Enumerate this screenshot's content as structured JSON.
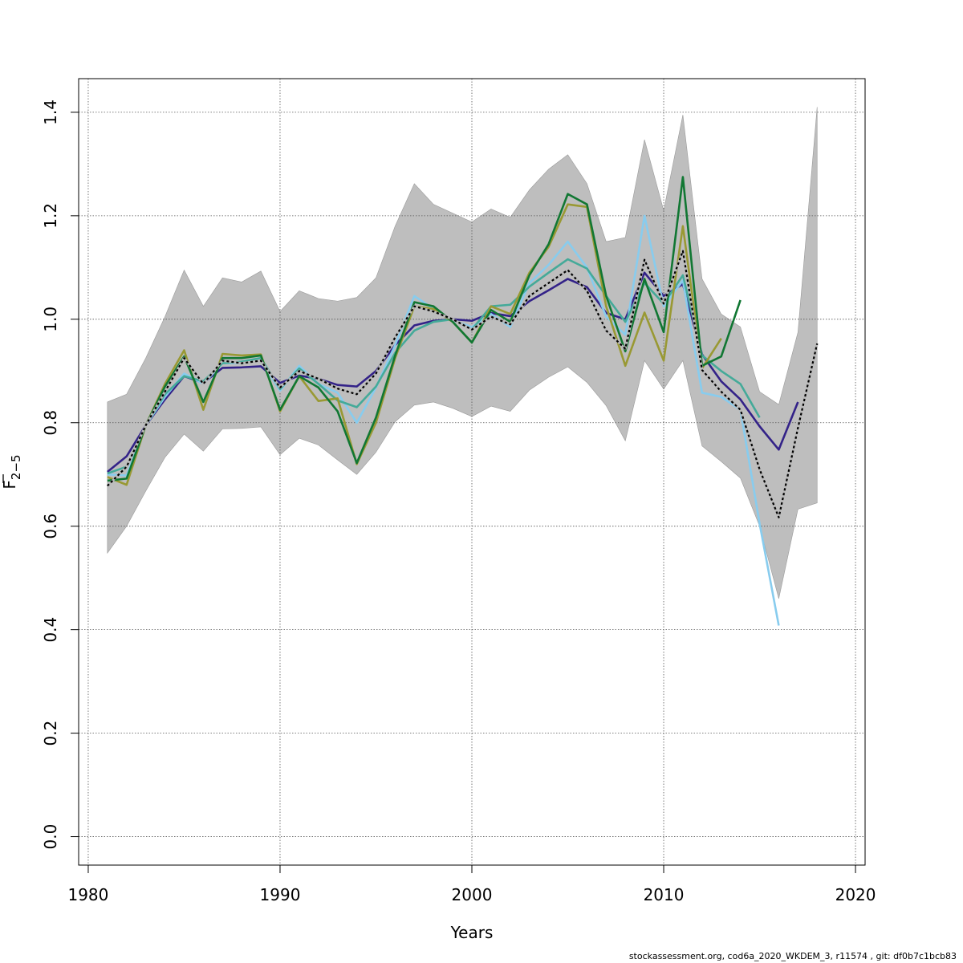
{
  "chart_data": {
    "type": "line",
    "title": "",
    "xlabel": "Years",
    "ylabel_main": "F",
    "ylabel_sub": "2−5",
    "xlim": [
      1979.5,
      2020.5
    ],
    "ylim": [
      -0.055,
      1.465
    ],
    "x_ticks": [
      1980,
      1990,
      2000,
      2010,
      2020
    ],
    "y_ticks": [
      0.0,
      0.2,
      0.4,
      0.6,
      0.8,
      1.0,
      1.2,
      1.4
    ],
    "x_tick_labels": [
      "1980",
      "1990",
      "2000",
      "2010",
      "2020"
    ],
    "y_tick_labels": [
      "0.0",
      "0.2",
      "0.4",
      "0.6",
      "0.8",
      "1.0",
      "1.2",
      "1.4"
    ],
    "grid": true,
    "band_color": "#bebebe",
    "band": {
      "x": [
        1981,
        1982,
        1983,
        1984,
        1985,
        1986,
        1987,
        1988,
        1989,
        1990,
        1991,
        1992,
        1993,
        1994,
        1995,
        1996,
        1997,
        1998,
        1999,
        2000,
        2001,
        2002,
        2003,
        2004,
        2005,
        2006,
        2007,
        2008,
        2009,
        2010,
        2011,
        2012,
        2013,
        2014,
        2015,
        2016,
        2017,
        2018
      ],
      "upper": [
        0.84,
        0.855,
        0.925,
        1.005,
        1.095,
        1.025,
        1.08,
        1.072,
        1.093,
        1.015,
        1.055,
        1.04,
        1.035,
        1.042,
        1.08,
        1.18,
        1.262,
        1.222,
        1.205,
        1.188,
        1.213,
        1.197,
        1.25,
        1.29,
        1.318,
        1.262,
        1.15,
        1.158,
        1.347,
        1.21,
        1.395,
        1.078,
        1.01,
        0.985,
        0.86,
        0.835,
        0.975,
        1.41
      ],
      "lower": [
        0.548,
        0.6,
        0.668,
        0.733,
        0.778,
        0.745,
        0.788,
        0.789,
        0.792,
        0.738,
        0.77,
        0.757,
        0.728,
        0.7,
        0.743,
        0.802,
        0.834,
        0.84,
        0.828,
        0.812,
        0.832,
        0.822,
        0.863,
        0.888,
        0.908,
        0.878,
        0.833,
        0.765,
        0.92,
        0.865,
        0.92,
        0.755,
        0.725,
        0.693,
        0.6,
        0.46,
        0.633,
        0.645
      ]
    },
    "series": [
      {
        "color": "#332288",
        "dashed": false,
        "x": [
          1981,
          1982,
          1983,
          1984,
          1985,
          1986,
          1987,
          1988,
          1989,
          1990,
          1991,
          1992,
          1993,
          1994,
          1995,
          1996,
          1997,
          1998,
          1999,
          2000,
          2001,
          2002,
          2003,
          2004,
          2005,
          2006,
          2007,
          2008,
          2009,
          2010,
          2011,
          2012,
          2013,
          2014,
          2015,
          2016,
          2017
        ],
        "values": [
          0.705,
          0.735,
          0.795,
          0.845,
          0.89,
          0.877,
          0.906,
          0.907,
          0.909,
          0.877,
          0.891,
          0.885,
          0.873,
          0.87,
          0.9,
          0.95,
          0.988,
          0.997,
          1.0,
          0.997,
          1.012,
          1.006,
          1.035,
          1.056,
          1.078,
          1.062,
          1.012,
          1.0,
          1.09,
          1.045,
          1.068,
          0.932,
          0.88,
          0.845,
          0.793,
          0.748,
          0.84
        ]
      },
      {
        "color": "#88ccee",
        "dashed": false,
        "x": [
          1981,
          1982,
          1983,
          1984,
          1985,
          1986,
          1987,
          1988,
          1989,
          1990,
          1991,
          1992,
          1993,
          1994,
          1995,
          1996,
          1997,
          1998,
          1999,
          2000,
          2001,
          2002,
          2003,
          2004,
          2005,
          2006,
          2007,
          2008,
          2009,
          2010,
          2011,
          2012,
          2013,
          2014,
          2015,
          2016
        ],
        "values": [
          0.7,
          0.698,
          0.795,
          0.85,
          0.895,
          0.875,
          0.915,
          0.915,
          0.92,
          0.862,
          0.91,
          0.875,
          0.858,
          0.8,
          0.868,
          0.95,
          1.045,
          1.02,
          0.998,
          0.985,
          1.01,
          0.985,
          1.07,
          1.105,
          1.15,
          1.1,
          1.005,
          0.97,
          1.2,
          1.025,
          1.075,
          0.858,
          0.85,
          0.825,
          0.605,
          0.408
        ]
      },
      {
        "color": "#44aa99",
        "dashed": false,
        "x": [
          1981,
          1982,
          1983,
          1984,
          1985,
          1986,
          1987,
          1988,
          1989,
          1990,
          1991,
          1992,
          1993,
          1994,
          1995,
          1996,
          1997,
          1998,
          1999,
          2000,
          2001,
          2002,
          2003,
          2004,
          2005,
          2006,
          2007,
          2008,
          2009,
          2010,
          2011,
          2012,
          2013,
          2014,
          2015
        ],
        "values": [
          0.702,
          0.715,
          0.795,
          0.855,
          0.89,
          0.88,
          0.915,
          0.918,
          0.925,
          0.865,
          0.905,
          0.875,
          0.843,
          0.83,
          0.87,
          0.935,
          0.978,
          0.995,
          1.0,
          0.98,
          1.025,
          1.028,
          1.063,
          1.09,
          1.116,
          1.098,
          1.045,
          0.995,
          1.07,
          1.03,
          1.085,
          0.93,
          0.9,
          0.875,
          0.81
        ]
      },
      {
        "color": "#999933",
        "dashed": false,
        "x": [
          1981,
          1982,
          1983,
          1984,
          1985,
          1986,
          1987,
          1988,
          1989,
          1990,
          1991,
          1992,
          1993,
          1994,
          1995,
          1996,
          1997,
          1998,
          1999,
          2000,
          2001,
          2002,
          2003,
          2004,
          2005,
          2006,
          2007,
          2008,
          2009,
          2010,
          2011,
          2012,
          2013
        ],
        "values": [
          0.695,
          0.68,
          0.795,
          0.875,
          0.94,
          0.825,
          0.933,
          0.93,
          0.932,
          0.822,
          0.89,
          0.842,
          0.847,
          0.72,
          0.8,
          0.925,
          1.025,
          1.02,
          0.995,
          0.955,
          1.025,
          1.01,
          1.09,
          1.14,
          1.222,
          1.217,
          1.025,
          0.91,
          1.013,
          0.92,
          1.18,
          0.905,
          0.963
        ]
      },
      {
        "color": "#117733",
        "dashed": false,
        "x": [
          1981,
          1982,
          1983,
          1984,
          1985,
          1986,
          1987,
          1988,
          1989,
          1990,
          1991,
          1992,
          1993,
          1994,
          1995,
          1996,
          1997,
          1998,
          1999,
          2000,
          2001,
          2002,
          2003,
          2004,
          2005,
          2006,
          2007,
          2008,
          2009,
          2010,
          2011,
          2012,
          2013,
          2014
        ],
        "values": [
          0.688,
          0.692,
          0.795,
          0.87,
          0.928,
          0.84,
          0.925,
          0.925,
          0.93,
          0.825,
          0.89,
          0.868,
          0.822,
          0.722,
          0.81,
          0.93,
          1.033,
          1.025,
          0.995,
          0.955,
          1.018,
          0.995,
          1.085,
          1.145,
          1.242,
          1.222,
          1.045,
          0.938,
          1.078,
          0.975,
          1.275,
          0.91,
          0.928,
          1.037
        ]
      },
      {
        "color": "#000000",
        "dashed": true,
        "x": [
          1981,
          1982,
          1983,
          1984,
          1985,
          1986,
          1987,
          1988,
          1989,
          1990,
          1991,
          1992,
          1993,
          1994,
          1995,
          1996,
          1997,
          1998,
          1999,
          2000,
          2001,
          2002,
          2003,
          2004,
          2005,
          2006,
          2007,
          2008,
          2009,
          2010,
          2011,
          2012,
          2013,
          2014,
          2015,
          2016,
          2017,
          2018
        ],
        "values": [
          0.678,
          0.715,
          0.795,
          0.86,
          0.925,
          0.875,
          0.92,
          0.915,
          0.92,
          0.868,
          0.9,
          0.885,
          0.866,
          0.855,
          0.895,
          0.965,
          1.025,
          1.015,
          1.0,
          0.98,
          1.005,
          0.99,
          1.045,
          1.07,
          1.095,
          1.055,
          0.978,
          0.943,
          1.115,
          1.03,
          1.132,
          0.902,
          0.86,
          0.825,
          0.71,
          0.617,
          0.79,
          0.953
        ]
      }
    ]
  },
  "footer_text": "stockassessment.org, cod6a_2020_WKDEM_3, r11574 , git: df0b7c1bcb83"
}
